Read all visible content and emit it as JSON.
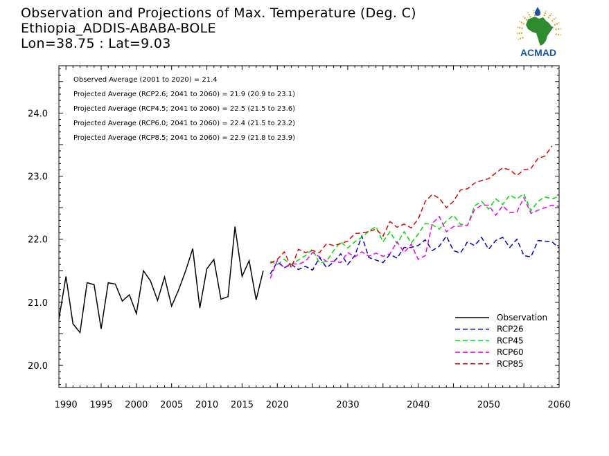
{
  "header": {
    "title_line1": "Observation and Projections of Max. Temperature (Deg. C)",
    "title_line2": "Ethiopia_ADDIS-ABABA-BOLE",
    "title_line3": "Lon=38.75 : Lat=9.03"
  },
  "logo": {
    "text": "ACMAD",
    "icon": "acmad-africa-logo-icon",
    "colors": {
      "africa": "#2e8b2e",
      "text": "#1a56a8",
      "rays": "#e8a020",
      "drop": "#1a56a8"
    }
  },
  "annotations": [
    "Observed Average (2001 to 2020) = 21.4",
    "Projected Average (RCP2.6; 2041 to 2060) = 21.9 (20.9 to 23.1)",
    "Projected Average (RCP4.5; 2041 to 2060) = 22.5 (21.5 to 23.6)",
    "Projected Average (RCP6.0; 2041 to 2060) = 22.4 (21.5 to 23.2)",
    "Projected Average (RCP8.5; 2041 to 2060) = 22.9 (21.8 to 23.9)"
  ],
  "chart_data": {
    "type": "line",
    "title": "Observation and Projections of Max. Temperature (Deg. C)",
    "xlim": [
      1989,
      2060
    ],
    "ylim": [
      19.65,
      24.75
    ],
    "grid": false,
    "legend_position": "bottom-right",
    "x_tick_labels": [
      {
        "value": 1990,
        "label": "1990"
      },
      {
        "value": 1995,
        "label": "1995"
      },
      {
        "value": 2000,
        "label": "2000"
      },
      {
        "value": 2005,
        "label": "2005"
      },
      {
        "value": 2010,
        "label": "2010"
      },
      {
        "value": 2015,
        "label": "2015"
      },
      {
        "value": 2020,
        "label": "2020"
      },
      {
        "value": 2030,
        "label": "2030"
      },
      {
        "value": 2040,
        "label": "2040"
      },
      {
        "value": 2050,
        "label": "2050"
      },
      {
        "value": 2060,
        "label": "2060"
      }
    ],
    "y_tick_labels": [
      {
        "value": 20.0,
        "label": "20.0"
      },
      {
        "value": 21.0,
        "label": "21.0"
      },
      {
        "value": 22.0,
        "label": "22.0"
      },
      {
        "value": 23.0,
        "label": "23.0"
      },
      {
        "value": 24.0,
        "label": "24.0"
      }
    ],
    "series": [
      {
        "name": "Observation",
        "color": "#000000",
        "dash": "solid",
        "x_start": 1989,
        "values": [
          20.73,
          21.41,
          20.66,
          20.52,
          21.31,
          21.28,
          20.58,
          21.31,
          21.29,
          21.02,
          21.12,
          20.82,
          21.5,
          21.34,
          21.03,
          21.4,
          20.94,
          21.2,
          21.5,
          21.85,
          20.91,
          21.53,
          21.68,
          21.05,
          21.09,
          22.2,
          21.41,
          21.66,
          21.04,
          21.5
        ]
      },
      {
        "name": "RCP26",
        "color": "#0000cc",
        "dash": "dashed",
        "x_start": 2019,
        "values": [
          21.45,
          21.64,
          21.55,
          21.6,
          21.52,
          21.57,
          21.51,
          21.71,
          21.55,
          21.64,
          21.77,
          21.6,
          21.74,
          22.05,
          21.71,
          21.67,
          21.63,
          21.76,
          21.7,
          21.87,
          21.87,
          21.9,
          21.99,
          21.82,
          21.89,
          22.05,
          21.82,
          21.78,
          21.96,
          21.9,
          22.03,
          21.84,
          21.98,
          22.03,
          21.87,
          22.0,
          21.74,
          21.72,
          21.98,
          21.97,
          21.96,
          21.86
        ]
      },
      {
        "name": "RCP45",
        "color": "#00dd00",
        "dash": "dashed",
        "x_start": 2019,
        "values": [
          21.65,
          21.6,
          21.68,
          21.6,
          21.67,
          21.74,
          21.84,
          21.62,
          21.65,
          21.82,
          21.96,
          21.86,
          21.96,
          22.03,
          22.13,
          22.2,
          21.96,
          22.12,
          21.93,
          22.12,
          21.94,
          22.08,
          22.25,
          22.23,
          22.16,
          22.29,
          22.38,
          22.24,
          22.22,
          22.53,
          22.6,
          22.48,
          22.64,
          22.55,
          22.7,
          22.64,
          22.72,
          22.45,
          22.6,
          22.67,
          22.64,
          22.68
        ]
      },
      {
        "name": "RCP60",
        "color": "#ee00ee",
        "dash": "dashed",
        "x_start": 2019,
        "values": [
          21.38,
          21.66,
          21.55,
          21.62,
          21.6,
          21.65,
          21.79,
          21.72,
          21.65,
          21.65,
          21.63,
          21.79,
          21.72,
          21.8,
          21.73,
          21.78,
          21.73,
          21.77,
          21.96,
          21.79,
          21.92,
          21.68,
          21.74,
          22.25,
          22.36,
          22.12,
          22.2,
          22.21,
          22.22,
          22.47,
          22.54,
          22.54,
          22.38,
          22.53,
          22.42,
          22.43,
          22.66,
          22.41,
          22.46,
          22.5,
          22.54,
          22.52
        ]
      },
      {
        "name": "RCP85",
        "color": "#dd0000",
        "dash": "dashed",
        "x_start": 2019,
        "values": [
          21.62,
          21.68,
          21.8,
          21.55,
          21.84,
          21.79,
          21.82,
          21.79,
          21.93,
          21.9,
          21.93,
          21.97,
          22.09,
          22.1,
          22.12,
          22.16,
          22.05,
          22.28,
          22.19,
          22.24,
          22.18,
          22.32,
          22.6,
          22.71,
          22.65,
          22.5,
          22.6,
          22.78,
          22.8,
          22.89,
          22.93,
          22.96,
          23.05,
          23.13,
          23.1,
          23.01,
          23.1,
          23.12,
          23.28,
          23.32,
          23.48
        ]
      }
    ]
  }
}
